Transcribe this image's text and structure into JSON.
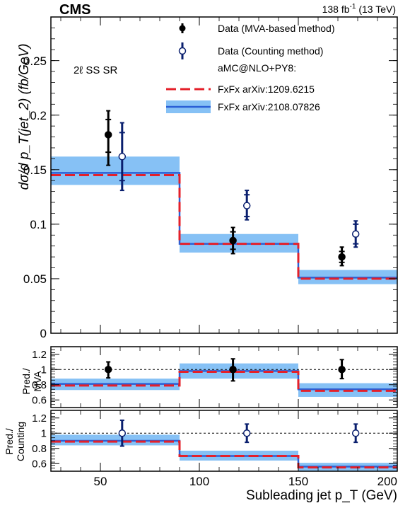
{
  "header": {
    "experiment": "CMS",
    "lumi_base": "138 fb",
    "lumi_exp": "-1",
    "lumi_rest": " (13 TeV)"
  },
  "colors": {
    "data_mva": "#000000",
    "data_counting": "#0a1f6e",
    "fxfx_2012": "#e4202a",
    "fxfx_2021_line": "#2a5fd6",
    "fxfx_2021_band": "#86c1f5"
  },
  "chart_data": {
    "type": "step-histogram with ratio panels",
    "region_label": "2ℓ SS SR",
    "xlabel": "Subleading jet p_T (GeV)",
    "xlim": [
      25,
      200
    ],
    "xticks": [
      50,
      100,
      150,
      200
    ],
    "bins": [
      [
        25,
        90
      ],
      [
        90,
        150
      ],
      [
        150,
        200
      ]
    ],
    "main": {
      "ylabel": "dσ/d p_T(jet_2) (fb/GeV)",
      "ylim": [
        0,
        0.29
      ],
      "yticks": [
        0,
        0.05,
        0.1,
        0.15,
        0.2,
        0.25
      ],
      "ytick_labels": [
        "0",
        "0.05",
        "0.1",
        "0.15",
        "0.2",
        "0.25"
      ],
      "series": [
        {
          "name": "Data (MVA-based method)",
          "x": [
            54,
            117,
            172
          ],
          "y": [
            0.182,
            0.085,
            0.07
          ],
          "err_up": [
            0.022,
            0.012,
            0.009
          ],
          "err_down": [
            0.028,
            0.012,
            0.008
          ],
          "syst_up": [
            0.014,
            0.008,
            0.005
          ],
          "syst_down": [
            0.016,
            0.008,
            0.005
          ]
        },
        {
          "name": "Data (Counting method)",
          "x": [
            61,
            124,
            179
          ],
          "y": [
            0.162,
            0.117,
            0.091
          ],
          "err_up": [
            0.031,
            0.014,
            0.012
          ],
          "err_down": [
            0.031,
            0.013,
            0.012
          ],
          "syst_up": [
            0.022,
            0.01,
            0.009
          ],
          "syst_down": [
            0.022,
            0.01,
            0.009
          ]
        },
        {
          "name": "FxFx arXiv:1209.6215",
          "values": [
            0.145,
            0.082,
            0.05
          ]
        },
        {
          "name": "FxFx arXiv:2108.07826",
          "values": [
            0.147,
            0.082,
            0.051
          ],
          "band_low": [
            0.136,
            0.074,
            0.045
          ],
          "band_high": [
            0.162,
            0.091,
            0.058
          ]
        }
      ],
      "legend_header": "aMC@NLO+PY8:",
      "legend_position": "top-right"
    },
    "ratio_mva": {
      "ylabel_line1": "Pred./",
      "ylabel_line2": "MVA",
      "ylim": [
        0.5,
        1.3
      ],
      "yticks": [
        0.6,
        0.8,
        1,
        1.2
      ],
      "ytick_labels": [
        "0.6",
        "0.8",
        "1",
        "1.2"
      ],
      "data": {
        "x": [
          54,
          117,
          172
        ],
        "y": [
          1.0,
          1.0,
          1.0
        ],
        "err_up": [
          0.1,
          0.14,
          0.13
        ],
        "err_down": [
          0.11,
          0.15,
          0.12
        ]
      },
      "fxfx_2012": [
        0.79,
        0.97,
        0.72
      ],
      "fxfx_2021": [
        0.81,
        0.98,
        0.74
      ],
      "band_low": [
        0.73,
        0.88,
        0.64
      ],
      "band_high": [
        0.88,
        1.08,
        0.82
      ]
    },
    "ratio_counting": {
      "ylabel_line1": "Pred./",
      "ylabel_line2": "Counting",
      "ylim": [
        0.5,
        1.3
      ],
      "yticks": [
        0.6,
        0.8,
        1,
        1.2
      ],
      "ytick_labels": [
        "0.6",
        "0.8",
        "1",
        "1.2"
      ],
      "data": {
        "x": [
          61,
          124,
          179
        ],
        "y": [
          1.0,
          1.0,
          1.0
        ],
        "err_up": [
          0.17,
          0.12,
          0.12
        ],
        "err_down": [
          0.17,
          0.12,
          0.12
        ]
      },
      "fxfx_2012": [
        0.89,
        0.7,
        0.55
      ],
      "fxfx_2021": [
        0.9,
        0.7,
        0.56
      ],
      "band_low": [
        0.84,
        0.64,
        0.5
      ],
      "band_high": [
        0.98,
        0.77,
        0.61
      ]
    }
  }
}
